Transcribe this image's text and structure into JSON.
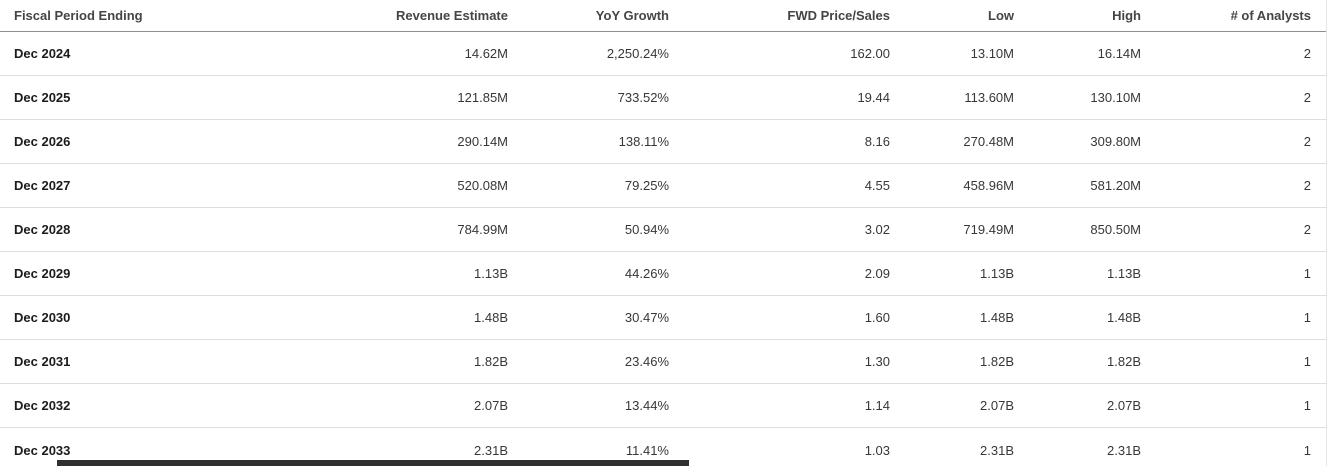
{
  "table": {
    "columns": [
      {
        "key": "period",
        "label": "Fiscal Period Ending"
      },
      {
        "key": "revenue_estimate",
        "label": "Revenue Estimate"
      },
      {
        "key": "yoy_growth",
        "label": "YoY Growth"
      },
      {
        "key": "fwd_price_sales",
        "label": "FWD Price/Sales"
      },
      {
        "key": "low",
        "label": "Low"
      },
      {
        "key": "high",
        "label": "High"
      },
      {
        "key": "analysts",
        "label": "# of Analysts"
      }
    ],
    "rows": [
      {
        "period": "Dec 2024",
        "revenue_estimate": "14.62M",
        "yoy_growth": "2,250.24%",
        "fwd_price_sales": "162.00",
        "low": "13.10M",
        "high": "16.14M",
        "analysts": "2"
      },
      {
        "period": "Dec 2025",
        "revenue_estimate": "121.85M",
        "yoy_growth": "733.52%",
        "fwd_price_sales": "19.44",
        "low": "113.60M",
        "high": "130.10M",
        "analysts": "2"
      },
      {
        "period": "Dec 2026",
        "revenue_estimate": "290.14M",
        "yoy_growth": "138.11%",
        "fwd_price_sales": "8.16",
        "low": "270.48M",
        "high": "309.80M",
        "analysts": "2"
      },
      {
        "period": "Dec 2027",
        "revenue_estimate": "520.08M",
        "yoy_growth": "79.25%",
        "fwd_price_sales": "4.55",
        "low": "458.96M",
        "high": "581.20M",
        "analysts": "2"
      },
      {
        "period": "Dec 2028",
        "revenue_estimate": "784.99M",
        "yoy_growth": "50.94%",
        "fwd_price_sales": "3.02",
        "low": "719.49M",
        "high": "850.50M",
        "analysts": "2"
      },
      {
        "period": "Dec 2029",
        "revenue_estimate": "1.13B",
        "yoy_growth": "44.26%",
        "fwd_price_sales": "2.09",
        "low": "1.13B",
        "high": "1.13B",
        "analysts": "1"
      },
      {
        "period": "Dec 2030",
        "revenue_estimate": "1.48B",
        "yoy_growth": "30.47%",
        "fwd_price_sales": "1.60",
        "low": "1.48B",
        "high": "1.48B",
        "analysts": "1"
      },
      {
        "period": "Dec 2031",
        "revenue_estimate": "1.82B",
        "yoy_growth": "23.46%",
        "fwd_price_sales": "1.30",
        "low": "1.82B",
        "high": "1.82B",
        "analysts": "1"
      },
      {
        "period": "Dec 2032",
        "revenue_estimate": "2.07B",
        "yoy_growth": "13.44%",
        "fwd_price_sales": "1.14",
        "low": "2.07B",
        "high": "2.07B",
        "analysts": "1"
      },
      {
        "period": "Dec 2033",
        "revenue_estimate": "2.31B",
        "yoy_growth": "11.41%",
        "fwd_price_sales": "1.03",
        "low": "2.31B",
        "high": "2.31B",
        "analysts": "1"
      }
    ]
  }
}
